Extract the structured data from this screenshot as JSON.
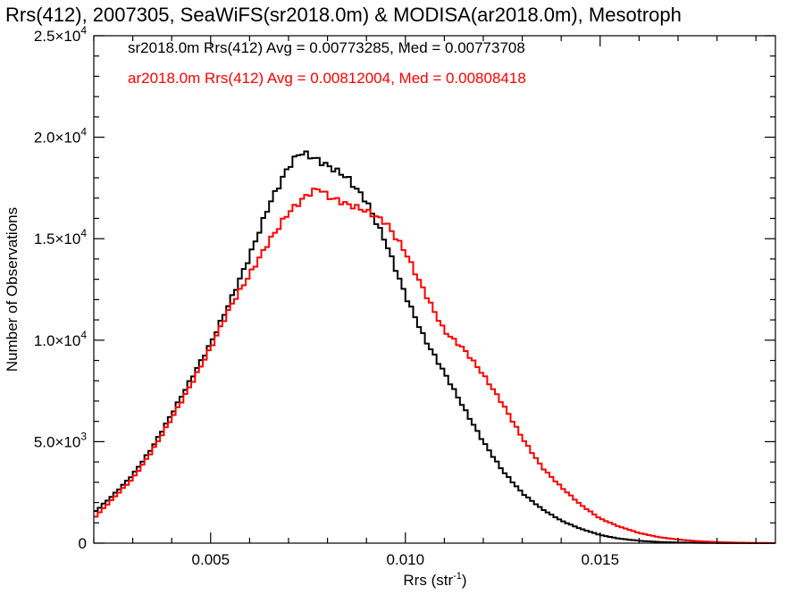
{
  "chart_data": {
    "type": "line",
    "title": "Rrs(412), 2007305, SeaWiFS(sr2018.0m) & MODISA(ar2018.0m), Mesotroph",
    "xlabel": "Rrs (str",
    "xlabel_sup": "-1",
    "xlabel_close": ")",
    "ylabel": "Number of Observations",
    "xlim": [
      0.002,
      0.0195
    ],
    "ylim": [
      0,
      25000
    ],
    "grid": false,
    "x_ticks": [
      {
        "value": 0.005,
        "label": "0.005"
      },
      {
        "value": 0.01,
        "label": "0.010"
      },
      {
        "value": 0.015,
        "label": "0.015"
      }
    ],
    "y_ticks": [
      {
        "value": 0,
        "mant": "0",
        "exp": ""
      },
      {
        "value": 5000,
        "mant": "5.0×10",
        "exp": "3"
      },
      {
        "value": 10000,
        "mant": "1.0×10",
        "exp": "4"
      },
      {
        "value": 15000,
        "mant": "1.5×10",
        "exp": "4"
      },
      {
        "value": 20000,
        "mant": "2.0×10",
        "exp": "4"
      },
      {
        "value": 25000,
        "mant": "2.5×10",
        "exp": "4"
      }
    ],
    "legend_placement": "top-left",
    "series": [
      {
        "name": "sr2018.0m",
        "label": "sr2018.0m Rrs(412) Avg = 0.00773285, Med = 0.00773708",
        "color": "#000000",
        "x": [
          0.002,
          0.0025,
          0.003,
          0.0035,
          0.004,
          0.0045,
          0.005,
          0.0055,
          0.006,
          0.0065,
          0.007,
          0.0073,
          0.0076,
          0.008,
          0.0085,
          0.009,
          0.0095,
          0.01,
          0.0105,
          0.011,
          0.0115,
          0.012,
          0.0125,
          0.013,
          0.0135,
          0.014,
          0.0145,
          0.015,
          0.0155,
          0.016,
          0.0165,
          0.017,
          0.0175,
          0.018,
          0.0185,
          0.019,
          0.0195
        ],
        "y": [
          1500,
          2400,
          3400,
          4700,
          6300,
          8000,
          9800,
          12000,
          14300,
          16800,
          18500,
          19100,
          18800,
          18400,
          18000,
          17000,
          15000,
          12300,
          10000,
          8300,
          6600,
          5000,
          3600,
          2500,
          1700,
          1100,
          700,
          400,
          220,
          120,
          60,
          30,
          15,
          8,
          4,
          2,
          1
        ]
      },
      {
        "name": "ar2018.0m",
        "label": "ar2018.0m Rrs(412) Avg = 0.00812004, Med = 0.00808418",
        "color": "#ff0000",
        "x": [
          0.002,
          0.0025,
          0.003,
          0.0035,
          0.004,
          0.0045,
          0.005,
          0.0055,
          0.006,
          0.0065,
          0.007,
          0.0075,
          0.0078,
          0.008,
          0.0085,
          0.009,
          0.0095,
          0.01,
          0.0105,
          0.011,
          0.0115,
          0.012,
          0.0125,
          0.013,
          0.0135,
          0.014,
          0.0145,
          0.015,
          0.0155,
          0.016,
          0.0165,
          0.017,
          0.0175,
          0.018,
          0.0185,
          0.019,
          0.0195
        ],
        "y": [
          1200,
          2200,
          3200,
          4600,
          6200,
          7800,
          9500,
          11500,
          13200,
          15000,
          16500,
          17300,
          17500,
          17000,
          16500,
          16200,
          15800,
          14500,
          12500,
          10500,
          9500,
          8200,
          6800,
          5200,
          3800,
          2800,
          1900,
          1200,
          800,
          500,
          300,
          180,
          100,
          50,
          25,
          12,
          5
        ]
      }
    ]
  }
}
